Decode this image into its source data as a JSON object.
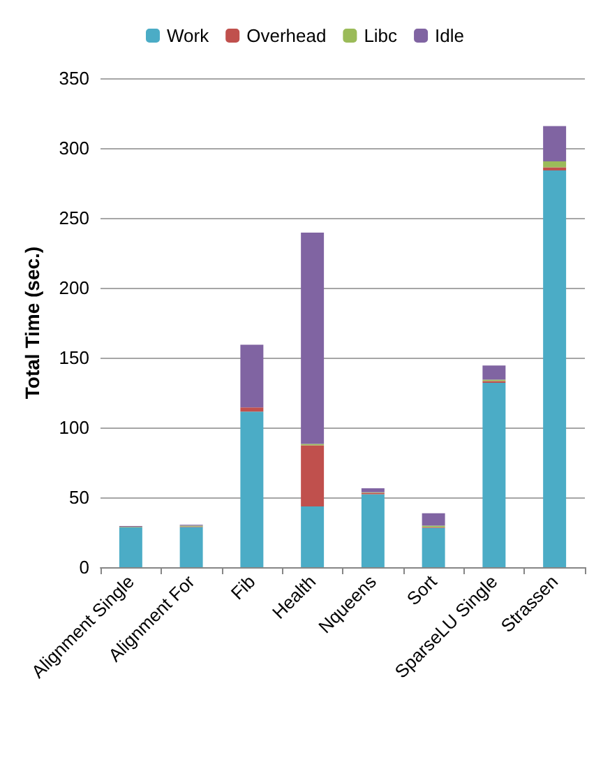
{
  "chart_data": {
    "type": "bar",
    "stacked": true,
    "ylabel": "Total Time (sec.)",
    "categories": [
      "Alignment Single",
      "Alignment For",
      "Fib",
      "Health",
      "Nqueens",
      "Sort",
      "SparseLU Single",
      "Strassen"
    ],
    "series": [
      {
        "name": "Work",
        "color": "#4bacc6",
        "values": [
          28.5,
          28.8,
          111.4,
          43.5,
          52.3,
          28.1,
          132,
          284
        ]
      },
      {
        "name": "Overhead",
        "color": "#c0504d",
        "values": [
          0.3,
          0.3,
          3,
          43.8,
          1,
          0.5,
          1.2,
          2.3
        ]
      },
      {
        "name": "Libc",
        "color": "#9bbb59",
        "values": [
          0.2,
          0.7,
          null,
          0.9,
          0.3,
          1.1,
          1.1,
          4.2
        ]
      },
      {
        "name": "Idle",
        "color": "#8064a2",
        "values": [
          0.5,
          0.6,
          44.8,
          151.3,
          2.9,
          8.9,
          10.1,
          25.2
        ]
      }
    ],
    "ylim": [
      0,
      350
    ],
    "yticks": [
      0,
      50,
      100,
      150,
      200,
      250,
      300,
      350
    ],
    "grid": "y",
    "legend": "top"
  }
}
